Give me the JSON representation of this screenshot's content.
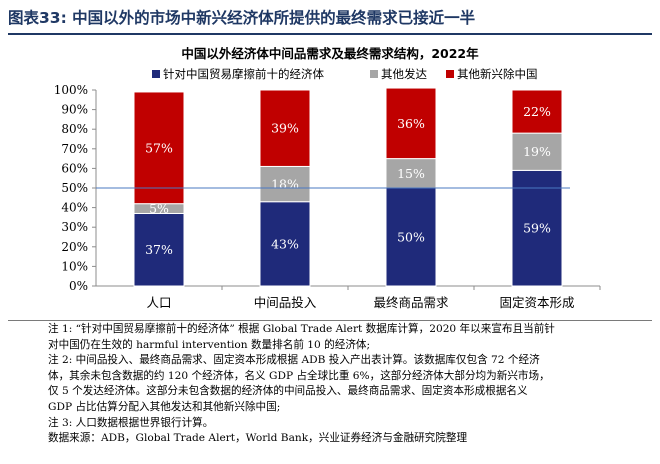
{
  "figure": {
    "title": "图表33:  中国以外的市场中新兴经济体所提供的最终需求已接近一半"
  },
  "chart_data": {
    "type": "bar",
    "stacked": true,
    "percent": true,
    "title": "中国以外经济体中间品需求及最终需求结构，2022年",
    "categories": [
      "人口",
      "中间品投入",
      "最终商品需求",
      "固定资本形成"
    ],
    "series": [
      {
        "name": "针对中国贸易摩擦前十的经济体",
        "color": "#1f2a7a",
        "values": [
          37,
          43,
          50,
          59
        ],
        "labels": [
          "37%",
          "43%",
          "50%",
          "59%"
        ],
        "label_color": "#ffffff"
      },
      {
        "name": "其他发达",
        "color": "#a6a6a6",
        "values": [
          5,
          18,
          15,
          19
        ],
        "labels": [
          "5%",
          "18%",
          "15%",
          "19%"
        ],
        "label_color": "#ffffff"
      },
      {
        "name": "其他新兴除中国",
        "color": "#c00000",
        "values": [
          57,
          39,
          36,
          22
        ],
        "labels": [
          "57%",
          "39%",
          "36%",
          "22%"
        ],
        "label_color": "#ffffff"
      }
    ],
    "ylim": [
      0,
      100
    ],
    "yticks": [
      "0%",
      "10%",
      "20%",
      "30%",
      "40%",
      "50%",
      "60%",
      "70%",
      "80%",
      "90%",
      "100%"
    ],
    "reference_line": {
      "value": 50,
      "color": "#4a78c2"
    },
    "legend": "top",
    "grid": false
  },
  "notes": [
    "注 1: “针对中国贸易摩擦前十的经济体” 根据 Global Trade Alert 数据库计算，2020 年以来宣布且当前针",
    "对中国仍在生效的 harmful intervention 数量排名前 10 的经济体;",
    "注 2:  中间品投入、最终商品需求、固定资本形成根据 ADB 投入产出表计算。该数据库仅包含 72 个经济",
    "体，其余未包含数据的约 120 个经济体，名义 GDP 占全球比重 6%，这部分经济体大部分均为新兴市场，",
    "仅 5 个发达经济体。这部分未包含数据的经济体的中间品投入、最终商品需求、固定资本形成根据名义",
    "GDP 占比估算分配入其他发达和其他新兴除中国;",
    "注 3:  人口数据根据世界银行计算。",
    "数据来源：ADB，Global Trade Alert，World Bank，兴业证券经济与金融研究院整理"
  ]
}
